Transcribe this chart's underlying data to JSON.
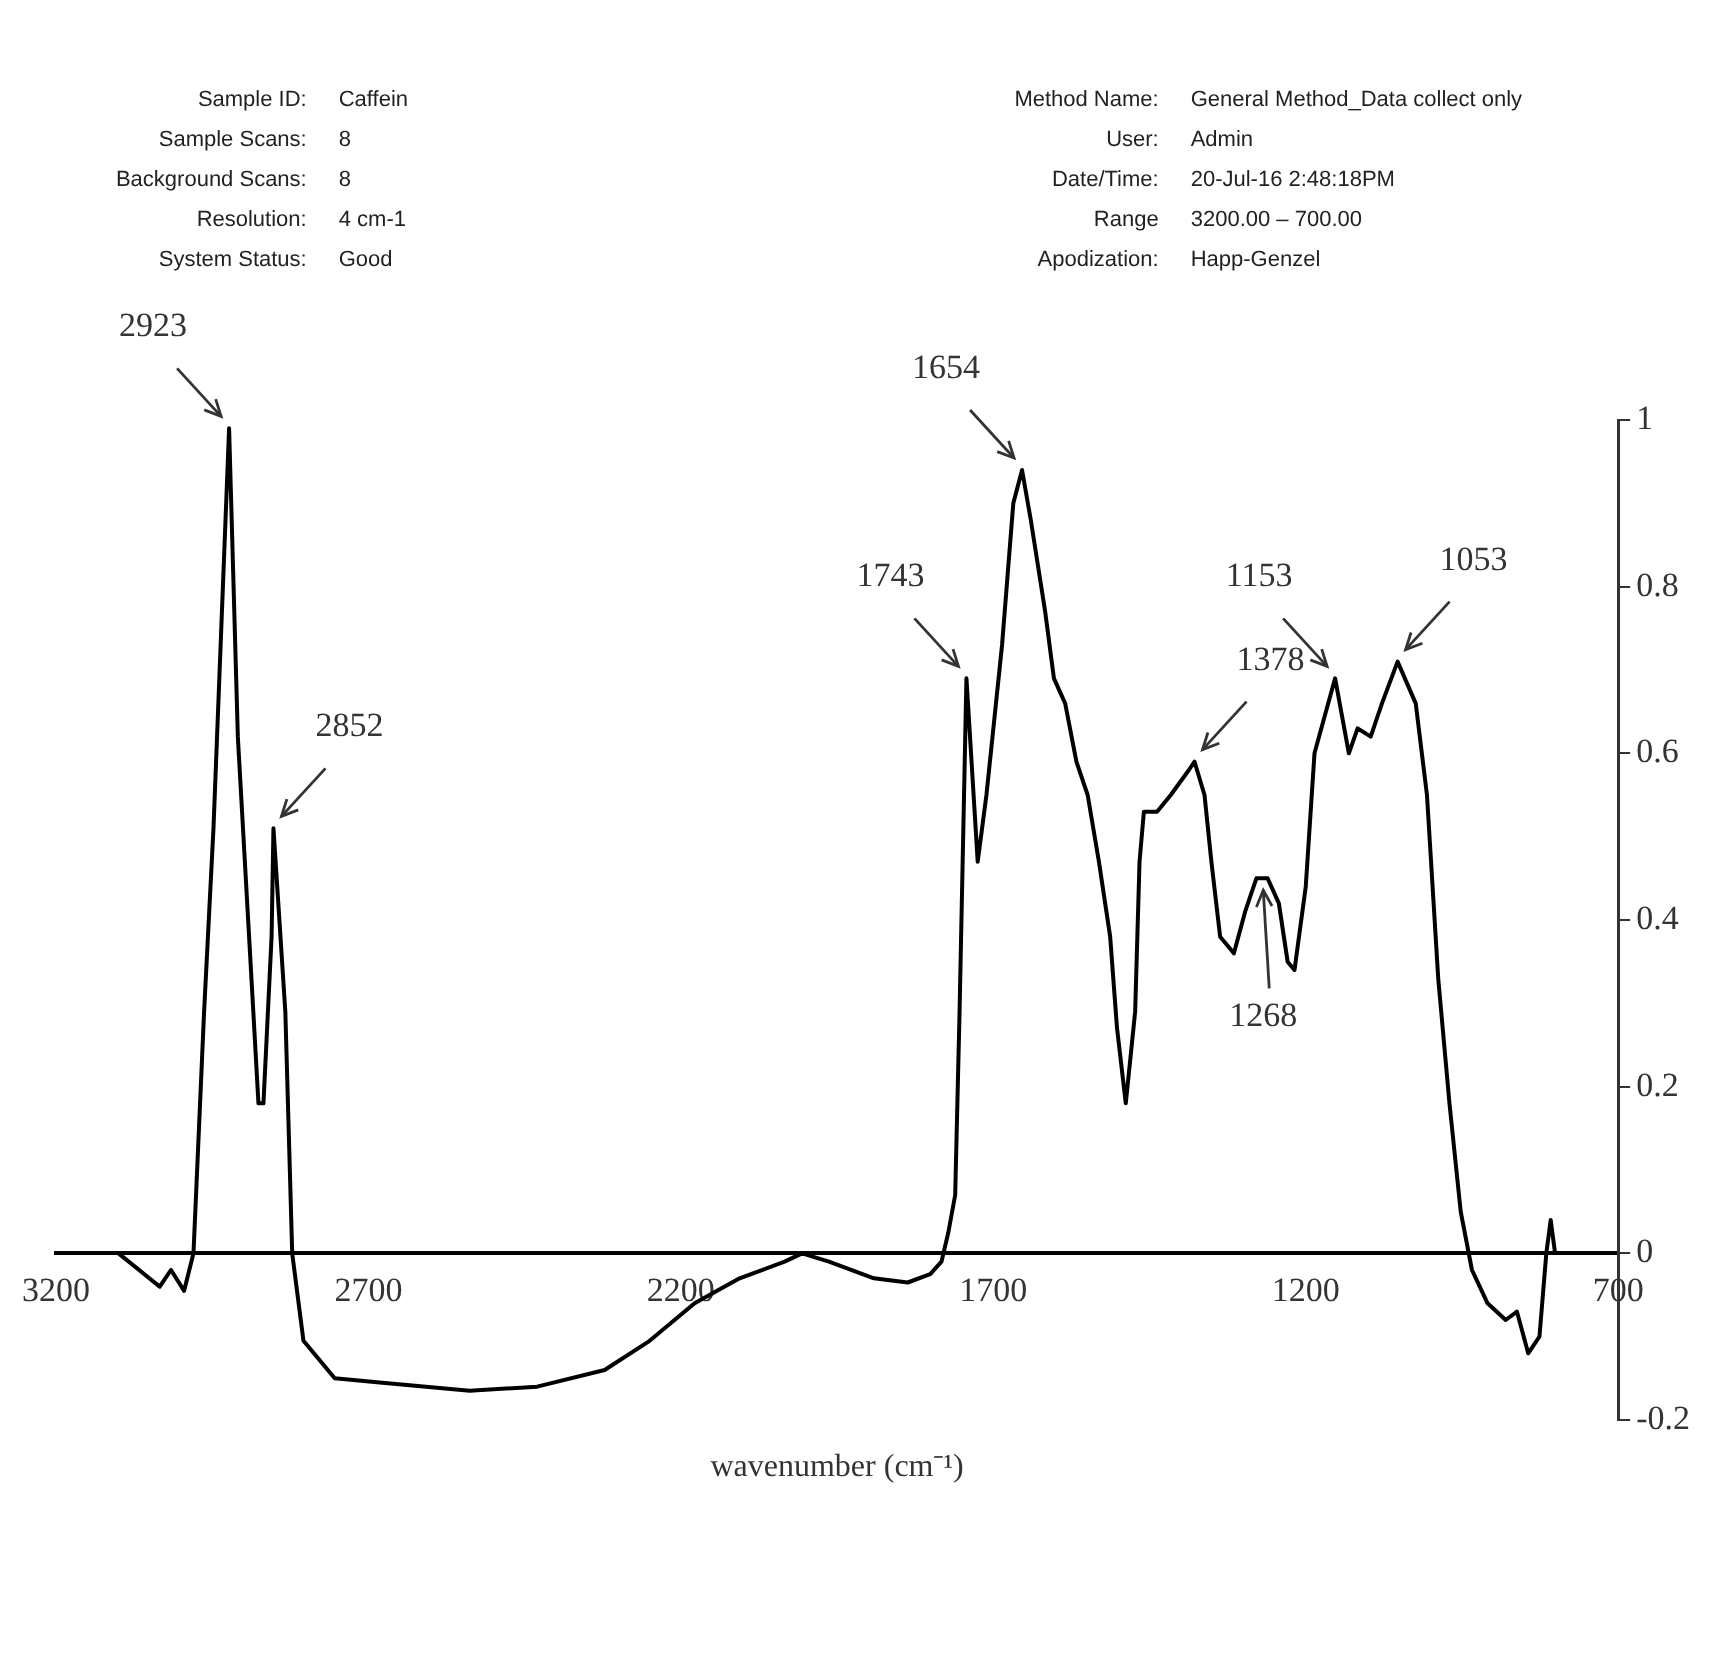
{
  "chart_data": {
    "type": "line",
    "xlabel": "wavenumber (cm⁻¹)",
    "xlim": [
      3200,
      700
    ],
    "xticks": [
      3200,
      2700,
      2200,
      1700,
      1200,
      700
    ],
    "ylim": [
      -0.2,
      1
    ],
    "yticks": [
      -0.2,
      0,
      0.2,
      0.4,
      0.6,
      0.8,
      1
    ],
    "marker": "none",
    "line_style": "solid",
    "series": [
      {
        "color": "#000000",
        "x": [
          3100,
          3034,
          3016,
          2995,
          2980,
          2963,
          2948,
          2923,
          2909,
          2891,
          2876,
          2868,
          2855,
          2852,
          2833,
          2822,
          2804,
          2754,
          2682,
          2538,
          2430,
          2322,
          2250,
          2178,
          2106,
          2034,
          2006,
          1963,
          1891,
          1837,
          1801,
          1783,
          1772,
          1761,
          1754,
          1743,
          1725,
          1711,
          1686,
          1668,
          1654,
          1640,
          1617,
          1603,
          1585,
          1567,
          1549,
          1531,
          1513,
          1502,
          1488,
          1473,
          1466,
          1459,
          1438,
          1416,
          1387,
          1378,
          1362,
          1351,
          1337,
          1315,
          1297,
          1279,
          1261,
          1243,
          1229,
          1218,
          1200,
          1186,
          1153,
          1131,
          1117,
          1096,
          1078,
          1053,
          1024,
          1006,
          988,
          970,
          952,
          934,
          909,
          880,
          862,
          844,
          826,
          815,
          808,
          801
        ],
        "values": [
          0,
          -0.04,
          -0.02,
          -0.045,
          0,
          0.29,
          0.51,
          0.99,
          0.62,
          0.38,
          0.18,
          0.18,
          0.38,
          0.51,
          0.29,
          0,
          -0.105,
          -0.15,
          -0.155,
          -0.165,
          -0.16,
          -0.14,
          -0.105,
          -0.06,
          -0.03,
          -0.01,
          0,
          -0.01,
          -0.03,
          -0.035,
          -0.025,
          -0.01,
          0.025,
          0.07,
          0.29,
          0.69,
          0.47,
          0.55,
          0.73,
          0.9,
          0.94,
          0.88,
          0.77,
          0.69,
          0.66,
          0.59,
          0.55,
          0.47,
          0.38,
          0.27,
          0.18,
          0.29,
          0.47,
          0.53,
          0.53,
          0.55,
          0.58,
          0.59,
          0.55,
          0.47,
          0.38,
          0.36,
          0.41,
          0.45,
          0.45,
          0.42,
          0.35,
          0.34,
          0.44,
          0.6,
          0.69,
          0.6,
          0.63,
          0.62,
          0.66,
          0.71,
          0.66,
          0.55,
          0.33,
          0.18,
          0.05,
          -0.02,
          -0.06,
          -0.08,
          -0.07,
          -0.12,
          -0.1,
          0,
          0.04,
          0
        ]
      }
    ],
    "annotations": [
      "Sample ID:",
      "Caffein",
      "Method Name:",
      "General Method_Data collect only",
      "Sample Scans:",
      "8",
      "User:",
      "Admin",
      "Background Scans:",
      "8",
      "Date/Time:",
      "20-Jul-16   2:48:18PM",
      "Resolution:",
      "4 cm-1",
      "Range",
      "3200.00 – 700.00",
      "System Status:",
      "Good",
      "Apodization:",
      "Happ-Genzel",
      {
        "text": "2923",
        "x": 2923,
        "y": 0.99
      },
      {
        "text": "2852",
        "x": 2852,
        "y": 0.51
      },
      {
        "text": "1743",
        "x": 1743,
        "y": 0.69
      },
      {
        "text": "1654",
        "x": 1654,
        "y": 0.94
      },
      {
        "text": "1378",
        "x": 1378,
        "y": 0.59
      },
      {
        "text": "1268",
        "x": 1268,
        "y": 0.45
      },
      {
        "text": "1153",
        "x": 1153,
        "y": 0.69
      },
      {
        "text": "1053",
        "x": 1053,
        "y": 0.71
      }
    ]
  }
}
